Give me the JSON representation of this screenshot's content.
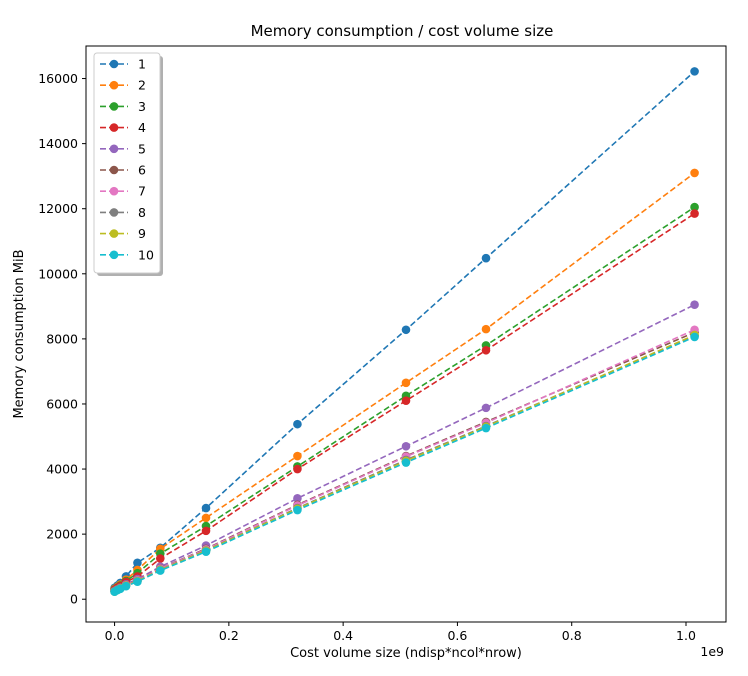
{
  "chart_data": {
    "type": "line",
    "title": "Memory consumption / cost volume size",
    "xlabel": "Cost volume size (ndisp*ncol*nrow)",
    "ylabel": "Memory consumption MiB",
    "x_offset_label": "1e9",
    "xlim": [
      -0.05,
      1.07
    ],
    "ylim": [
      -700,
      17000
    ],
    "xticks": [
      0.0,
      0.2,
      0.4,
      0.6,
      0.8,
      1.0
    ],
    "xtick_labels": [
      "0.0",
      "0.2",
      "0.4",
      "0.6",
      "0.8",
      "1.0"
    ],
    "yticks": [
      0,
      2000,
      4000,
      6000,
      8000,
      10000,
      12000,
      14000,
      16000
    ],
    "ytick_labels": [
      "0",
      "2000",
      "4000",
      "6000",
      "8000",
      "10000",
      "12000",
      "14000",
      "16000"
    ],
    "grid": false,
    "legend_position": "top-left",
    "series": [
      {
        "name": "1",
        "color": "#1f77b4",
        "x": [
          0,
          0.005,
          0.01,
          0.02,
          0.04,
          0.08,
          0.16,
          0.32,
          0.51,
          0.65,
          1.015
        ],
        "y": [
          350,
          420,
          500,
          700,
          1120,
          1580,
          2800,
          5380,
          8280,
          10480,
          16220
        ]
      },
      {
        "name": "2",
        "color": "#ff7f0e",
        "x": [
          0,
          0.005,
          0.01,
          0.02,
          0.04,
          0.08,
          0.16,
          0.32,
          0.51,
          0.65,
          1.015
        ],
        "y": [
          320,
          380,
          450,
          600,
          900,
          1550,
          2500,
          4400,
          6650,
          8300,
          13100
        ]
      },
      {
        "name": "3",
        "color": "#2ca02c",
        "x": [
          0,
          0.005,
          0.01,
          0.02,
          0.04,
          0.08,
          0.16,
          0.32,
          0.51,
          0.65,
          1.015
        ],
        "y": [
          300,
          360,
          420,
          560,
          800,
          1400,
          2250,
          4080,
          6250,
          7800,
          12050
        ]
      },
      {
        "name": "4",
        "color": "#d62728",
        "x": [
          0,
          0.005,
          0.01,
          0.02,
          0.04,
          0.08,
          0.16,
          0.32,
          0.51,
          0.65,
          1.015
        ],
        "y": [
          290,
          350,
          400,
          530,
          700,
          1250,
          2100,
          4000,
          6100,
          7650,
          11850
        ]
      },
      {
        "name": "5",
        "color": "#9467bd",
        "x": [
          0,
          0.005,
          0.01,
          0.02,
          0.04,
          0.08,
          0.16,
          0.32,
          0.51,
          0.65,
          1.015
        ],
        "y": [
          260,
          310,
          360,
          460,
          620,
          1000,
          1650,
          3100,
          4700,
          5880,
          9050
        ]
      },
      {
        "name": "6",
        "color": "#8c564b",
        "x": [
          0,
          0.005,
          0.01,
          0.02,
          0.04,
          0.08,
          0.16,
          0.32,
          0.51,
          0.65,
          1.015
        ],
        "y": [
          250,
          300,
          350,
          440,
          590,
          950,
          1550,
          2900,
          4400,
          5450,
          8200
        ]
      },
      {
        "name": "7",
        "color": "#e377c2",
        "x": [
          0,
          0.005,
          0.01,
          0.02,
          0.04,
          0.08,
          0.16,
          0.32,
          0.51,
          0.65,
          1.015
        ],
        "y": [
          245,
          295,
          345,
          430,
          580,
          940,
          1530,
          2880,
          4380,
          5420,
          8280
        ]
      },
      {
        "name": "8",
        "color": "#7f7f7f",
        "x": [
          0,
          0.005,
          0.01,
          0.02,
          0.04,
          0.08,
          0.16,
          0.32,
          0.51,
          0.65,
          1.015
        ],
        "y": [
          240,
          290,
          335,
          420,
          560,
          910,
          1500,
          2800,
          4280,
          5320,
          8100
        ]
      },
      {
        "name": "9",
        "color": "#bcbd22",
        "x": [
          0,
          0.005,
          0.01,
          0.02,
          0.04,
          0.08,
          0.16,
          0.32,
          0.51,
          0.65,
          1.015
        ],
        "y": [
          235,
          285,
          330,
          415,
          555,
          900,
          1490,
          2780,
          4250,
          5300,
          8120
        ]
      },
      {
        "name": "10",
        "color": "#17becf",
        "x": [
          0,
          0.005,
          0.01,
          0.02,
          0.04,
          0.08,
          0.16,
          0.32,
          0.51,
          0.65,
          1.015
        ],
        "y": [
          230,
          280,
          320,
          400,
          540,
          880,
          1460,
          2740,
          4200,
          5260,
          8060
        ]
      }
    ]
  }
}
